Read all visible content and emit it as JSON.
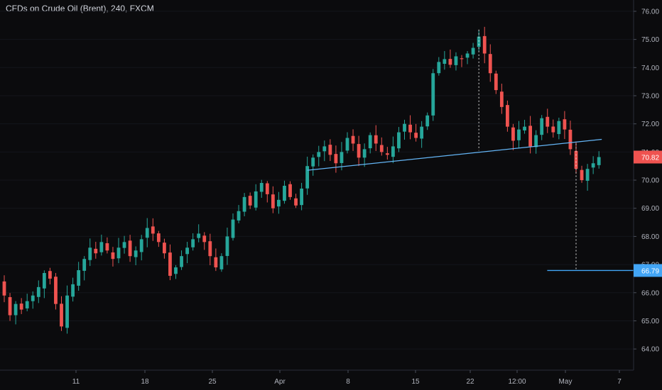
{
  "header": {
    "symbol_title": "CFDs on Crude Oil (Brent), 240, FXCM"
  },
  "chart_data": {
    "type": "candlestick",
    "ylim": [
      63.5,
      76.2
    ],
    "y_ticks": [
      "64.00",
      "65.00",
      "66.00",
      "67.00",
      "68.00",
      "69.00",
      "70.00",
      "71.00",
      "72.00",
      "73.00",
      "74.00",
      "75.00",
      "76.00"
    ],
    "x_ticks": [
      "11",
      "18",
      "25",
      "Apr",
      "8",
      "15",
      "22",
      "12:00",
      "May",
      "7"
    ],
    "last_price": "70.82",
    "target_price": "66.79",
    "colors": {
      "up": "#26a69a",
      "down": "#ef5350",
      "trendline": "#64b5f6",
      "target": "#42a5f5"
    },
    "closes": [
      65.9,
      65.2,
      65.6,
      65.4,
      65.7,
      65.9,
      66.2,
      66.7,
      66.5,
      65.6,
      64.8,
      65.9,
      66.3,
      66.8,
      67.2,
      67.6,
      67.4,
      67.8,
      67.5,
      67.2,
      67.6,
      67.8,
      67.3,
      67.5,
      67.9,
      68.3,
      68.1,
      67.8,
      67.4,
      66.6,
      66.9,
      67.3,
      67.6,
      67.9,
      68.1,
      67.8,
      67.3,
      66.9,
      67.3,
      68.0,
      68.6,
      68.9,
      69.4,
      69.1,
      69.6,
      69.9,
      69.5,
      69.0,
      69.3,
      69.8,
      69.4,
      69.1,
      69.7,
      70.5,
      70.8,
      71.0,
      71.2,
      70.9,
      70.6,
      71.0,
      71.5,
      71.3,
      70.8,
      71.1,
      71.6,
      71.3,
      71.0,
      70.9,
      71.2,
      71.7,
      72.0,
      71.7,
      71.5,
      71.9,
      72.3,
      73.8,
      74.2,
      74.3,
      74.1,
      74.4,
      74.3,
      74.5,
      74.7,
      75.1,
      74.5,
      73.8,
      73.2,
      72.6,
      71.9,
      71.4,
      71.8,
      71.9,
      71.2,
      71.6,
      72.2,
      71.9,
      71.7,
      72.1,
      71.8,
      71.1,
      70.4,
      70.0,
      70.4,
      70.6,
      70.82
    ],
    "trendline": {
      "from_index": 53,
      "from_price": 70.35,
      "to_index": 104,
      "to_price": 71.45
    },
    "target_line": {
      "from_index": 88,
      "to_index": 112,
      "price": 66.79
    },
    "dashed_markers": [
      {
        "index": 83,
        "from_price": 75.35,
        "to_price": 71.05
      },
      {
        "index": 100,
        "from_price": 71.3,
        "to_price": 66.79
      }
    ]
  }
}
